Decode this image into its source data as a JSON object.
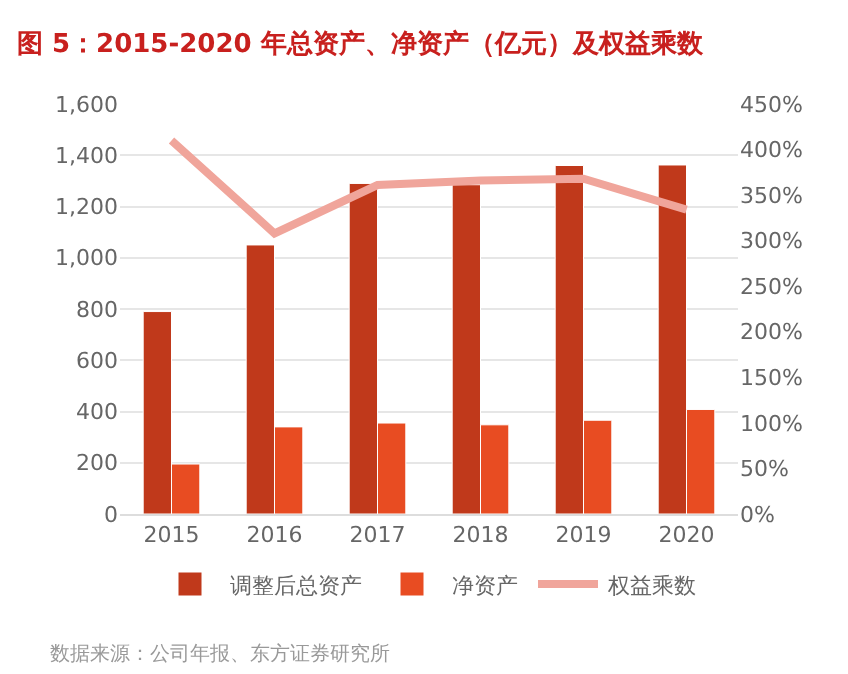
{
  "chart_data": {
    "type": "bar",
    "title": "图 5：2015-2020 年总资产、净资产（亿元）及权益乘数",
    "categories": [
      "2015",
      "2016",
      "2017",
      "2018",
      "2019",
      "2020"
    ],
    "series": [
      {
        "name": "调整后总资产",
        "color": "#c0391b",
        "values": [
          790,
          1050,
          1290,
          1285,
          1360,
          1362
        ]
      },
      {
        "name": "净资产",
        "color": "#e84c22",
        "values": [
          195,
          340,
          355,
          348,
          366,
          408
        ]
      },
      {
        "name": "权益乘数",
        "color": "#f0a59b",
        "type": "line",
        "axis": "y2",
        "values": [
          410,
          308,
          361,
          366,
          368,
          334
        ]
      }
    ],
    "ylim": [
      0,
      1600
    ],
    "yticks": [
      0,
      200,
      400,
      600,
      800,
      {
        "value": 1000,
        "label": "1,000"
      },
      {
        "value": 1200,
        "label": "1,200"
      },
      {
        "value": 1400,
        "label": "1,400"
      },
      {
        "value": 1600,
        "label": "1,600"
      }
    ],
    "y2lim": [
      0,
      450
    ],
    "y2ticks": [
      {
        "value": 0,
        "label": "0%"
      },
      {
        "value": 50,
        "label": "50%"
      },
      {
        "value": 100,
        "label": "100%"
      },
      {
        "value": 150,
        "label": "150%"
      },
      {
        "value": 200,
        "label": "200%"
      },
      {
        "value": 250,
        "label": "250%"
      },
      {
        "value": 300,
        "label": "300%"
      },
      {
        "value": 350,
        "label": "350%"
      },
      {
        "value": 400,
        "label": "400%"
      },
      {
        "value": 450,
        "label": "450%"
      }
    ],
    "grid": "y",
    "legend": "bottom",
    "marker": "none",
    "annotations": [
      "数据来源：公司年报、东方证券研究所"
    ]
  }
}
